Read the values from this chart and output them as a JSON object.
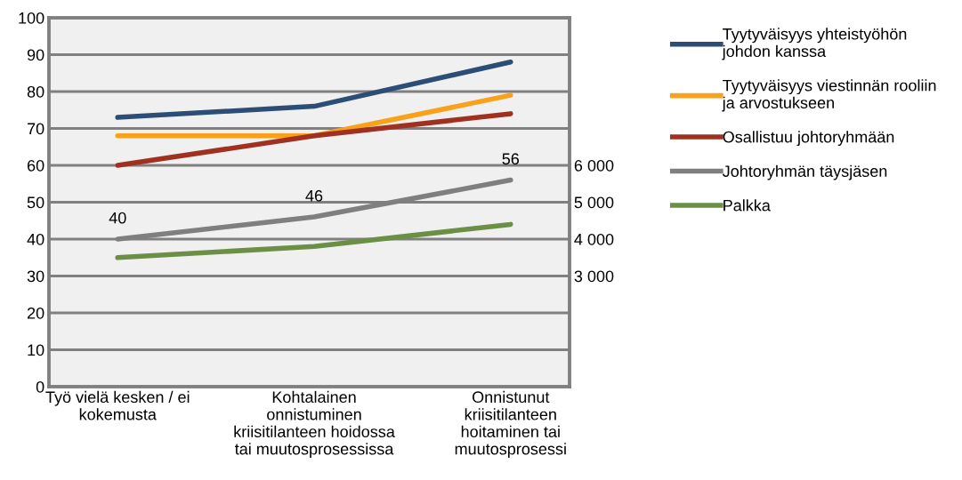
{
  "chart_data": {
    "type": "line",
    "categories": [
      "Työ vielä kesken / ei\nkokemusta",
      "Kohtalainen\nonnistuminen\nkriisitilanteen hoidossa\ntai muutosprosessissa",
      "Onnistunut\nkriisitilanteen\nhoitaminen tai\nmuutosprosessi"
    ],
    "series": [
      {
        "name": "Tyytyväisyys yhteistyöhön\njohdon kanssa",
        "color": "#2c4d75",
        "values": [
          73,
          76,
          88
        ]
      },
      {
        "name": "Tyytyväisyys viestinnän rooliin\nja arvostukseen",
        "color": "#f9a11b",
        "values": [
          68,
          68,
          79
        ]
      },
      {
        "name": "Osallistuu johtoryhmään",
        "color": "#a0301f",
        "values": [
          60,
          68,
          74
        ]
      },
      {
        "name": "Johtoryhmän täysjäsen",
        "color": "#7f7f7f",
        "values": [
          40,
          46,
          56
        ],
        "value_labels": [
          "40",
          "46",
          "56"
        ]
      },
      {
        "name": "Palkka",
        "color": "#6a8f45",
        "values": [
          3500,
          3800,
          4400
        ],
        "axis": "y2"
      }
    ],
    "ylim": [
      0,
      100
    ],
    "yticks": [
      0,
      10,
      20,
      30,
      40,
      50,
      60,
      70,
      80,
      90,
      100
    ],
    "y2lim": [
      0,
      10000
    ],
    "y2ticks": [
      {
        "value": 3000,
        "label": "3 000"
      },
      {
        "value": 4000,
        "label": "4 000"
      },
      {
        "value": 5000,
        "label": "5 000"
      },
      {
        "value": 6000,
        "label": "6 000"
      }
    ],
    "grid": "y",
    "legend": "right",
    "line_style": "solid",
    "marker": "none"
  }
}
